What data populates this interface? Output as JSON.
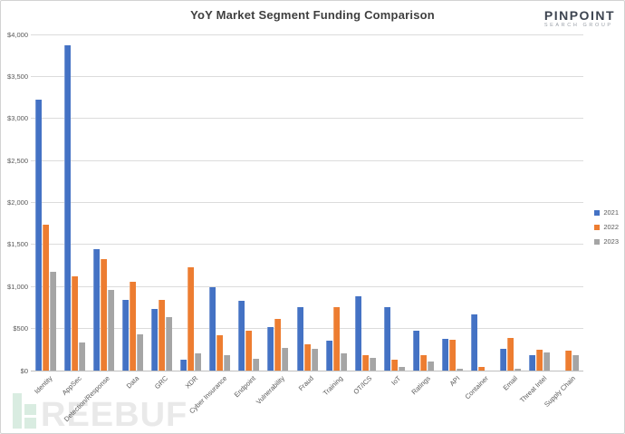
{
  "header": {
    "title": "YoY Market Segment Funding Comparison",
    "logo": {
      "brand": "PINPOINT",
      "subtitle": "SEARCH GROUP"
    }
  },
  "watermark": {
    "text": "REEBUF"
  },
  "chart_data": {
    "type": "bar",
    "title": "YoY Market Segment Funding Comparison",
    "categories": [
      "Identity",
      "AppSec",
      "Detection/Response",
      "Data",
      "GRC",
      "XDR",
      "Cyber Insurance",
      "Endpoint",
      "Vulnerability",
      "Fraud",
      "Training",
      "OT/ICS",
      "IoT",
      "Ratings",
      "API",
      "Container",
      "Email",
      "Threat Intel",
      "Supply Chain"
    ],
    "series": [
      {
        "name": "2021",
        "color": "#4472C4",
        "values": [
          3220,
          3870,
          1440,
          840,
          730,
          130,
          990,
          830,
          520,
          750,
          360,
          880,
          750,
          470,
          375,
          670,
          260,
          180,
          0
        ]
      },
      {
        "name": "2022",
        "color": "#ED7D31",
        "values": [
          1740,
          1120,
          1330,
          1060,
          840,
          1230,
          420,
          470,
          610,
          310,
          750,
          180,
          130,
          180,
          365,
          45,
          390,
          250,
          240
        ]
      },
      {
        "name": "2023",
        "color": "#A5A5A5",
        "values": [
          1170,
          330,
          960,
          430,
          640,
          200,
          180,
          140,
          270,
          260,
          210,
          150,
          45,
          105,
          20,
          0,
          25,
          220,
          185
        ]
      }
    ],
    "xlabel": "",
    "ylabel": "",
    "ylim": [
      0,
      4000
    ],
    "y_tick_step": 500,
    "y_ticks": [
      "$0",
      "$500",
      "$1,000",
      "$1,500",
      "$2,000",
      "$2,500",
      "$3,000",
      "$3,500",
      "$4,000"
    ],
    "grid": true,
    "legend_position": "right"
  }
}
